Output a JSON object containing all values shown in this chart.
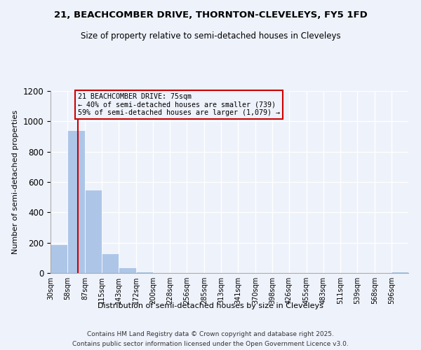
{
  "title1": "21, BEACHCOMBER DRIVE, THORNTON-CLEVELEYS, FY5 1FD",
  "title2": "Size of property relative to semi-detached houses in Cleveleys",
  "xlabel": "Distribution of semi-detached houses by size in Cleveleys",
  "ylabel": "Number of semi-detached properties",
  "bin_labels": [
    "30sqm",
    "58sqm",
    "87sqm",
    "115sqm",
    "143sqm",
    "172sqm",
    "200sqm",
    "228sqm",
    "256sqm",
    "285sqm",
    "313sqm",
    "341sqm",
    "370sqm",
    "398sqm",
    "426sqm",
    "455sqm",
    "483sqm",
    "511sqm",
    "539sqm",
    "568sqm",
    "596sqm"
  ],
  "bin_values": [
    190,
    940,
    550,
    130,
    35,
    10,
    3,
    0,
    0,
    0,
    0,
    0,
    0,
    0,
    0,
    0,
    0,
    0,
    0,
    0,
    10
  ],
  "bin_edges": [
    30,
    58,
    87,
    115,
    143,
    172,
    200,
    228,
    256,
    285,
    313,
    341,
    370,
    398,
    426,
    455,
    483,
    511,
    539,
    568,
    596,
    624
  ],
  "property_size": 75,
  "property_label": "21 BEACHCOMBER DRIVE: 75sqm",
  "pct_smaller": 40,
  "pct_larger": 59,
  "count_smaller": 739,
  "count_larger": 1079,
  "bar_color": "#adc6e8",
  "line_color": "#cc0000",
  "annotation_box_edgecolor": "#cc0000",
  "background_color": "#eef2fb",
  "grid_color": "#ffffff",
  "ylim": [
    0,
    1200
  ],
  "yticks": [
    0,
    200,
    400,
    600,
    800,
    1000,
    1200
  ],
  "footer1": "Contains HM Land Registry data © Crown copyright and database right 2025.",
  "footer2": "Contains public sector information licensed under the Open Government Licence v3.0."
}
